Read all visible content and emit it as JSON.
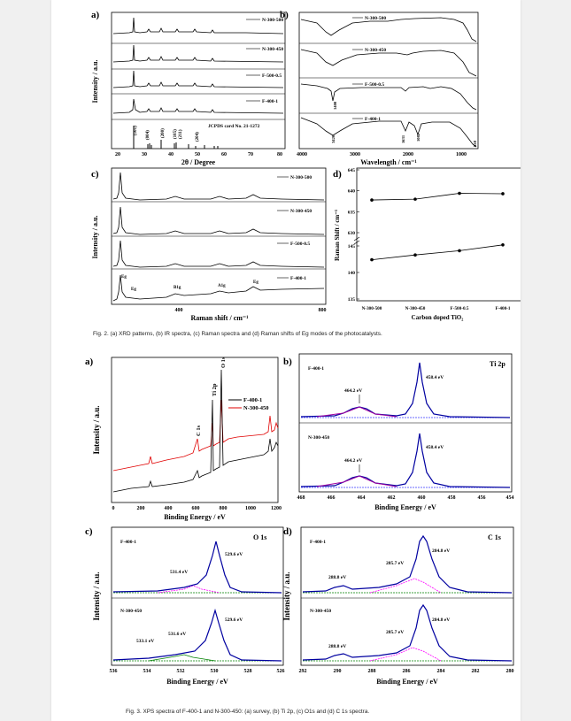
{
  "figure2": {
    "caption": "Fig. 2. (a) XRD patterns, (b) IR spectra, (c) Raman spectra and (d) Raman shifts of Eg modes of the photocatalysts.",
    "a": {
      "label": "a)",
      "xlabel": "2θ / Degree",
      "ylabel": "Intensity / a.u.",
      "xticks": [
        "20",
        "30",
        "40",
        "50",
        "60",
        "70",
        "80"
      ],
      "series": [
        "N-300-500",
        "N-300-450",
        "F-500-0.5",
        "F-400-1"
      ],
      "ref_label": "JCPDS card No. 21-1272",
      "peaks": [
        "(101)",
        "(004)",
        "(200)",
        "(105)",
        "(211)",
        "(204)"
      ]
    },
    "b": {
      "label": "b)",
      "xlabel": "Wavelength / cm⁻¹",
      "xticks": [
        "4000",
        "3000",
        "2000",
        "1000"
      ],
      "series": [
        "N-300-500",
        "N-300-450",
        "F-500-0.5",
        "F-400-1"
      ],
      "bands": [
        "3420",
        "1631",
        "1400",
        "1082",
        "928"
      ]
    },
    "c": {
      "label": "c)",
      "xlabel": "Raman shift / cm⁻¹",
      "ylabel": "Intensity / a.u.",
      "xticks": [
        "400",
        "800"
      ],
      "series": [
        "N-300-500",
        "N-300-450",
        "F-500-0.5",
        "F-400-1"
      ],
      "modes": [
        "Eg",
        "Eg",
        "B1g",
        "A1g",
        "Eg"
      ]
    },
    "d": {
      "label": "d)",
      "xlabel": "Carbon doped TiO₂",
      "ylabel": "Raman Shift / cm⁻¹",
      "categories": [
        "N-300-500",
        "N-300-450",
        "F-500-0.5",
        "F-400-1"
      ],
      "yticks_top": [
        "630",
        "635",
        "640",
        "645"
      ],
      "yticks_bottom": [
        "135",
        "140",
        "145"
      ]
    }
  },
  "figure3": {
    "caption": "Fig. 3. XPS spectra of F-400-1 and N-300-450: (a) survey, (b) Ti 2p, (c) O1s and (d) C 1s spectra.",
    "a": {
      "label": "a)",
      "xlabel": "Binding Energy / eV",
      "ylabel": "Intensity / a.u.",
      "xticks": [
        "0",
        "200",
        "400",
        "600",
        "800",
        "1000",
        "1200"
      ],
      "legend": [
        "F-400-1",
        "N-300-450"
      ],
      "peaks": [
        "C 1s",
        "Ti 2p",
        "O 1s"
      ]
    },
    "b": {
      "label": "b)",
      "title": "Ti 2p",
      "xlabel": "Binding Energy / eV",
      "xticks": [
        "468",
        "466",
        "464",
        "462",
        "460",
        "458",
        "456",
        "454"
      ],
      "panels": [
        {
          "sample": "F-400-1",
          "peak1": "464.2 eV",
          "peak2": "458.4 eV"
        },
        {
          "sample": "N-300-450",
          "peak1": "464.2 eV",
          "peak2": "458.4 eV"
        }
      ]
    },
    "c": {
      "label": "c)",
      "title": "O 1s",
      "xlabel": "Binding Energy / eV",
      "ylabel": "Intensity / a.u.",
      "xticks": [
        "536",
        "534",
        "532",
        "530",
        "528",
        "526"
      ],
      "panels": [
        {
          "sample": "F-400-1",
          "peaks": [
            "531.4 eV",
            "529.6 eV"
          ]
        },
        {
          "sample": "N-300-450",
          "peaks": [
            "533.1 eV",
            "531.6 eV",
            "529.6 eV"
          ]
        }
      ]
    },
    "d": {
      "label": "d)",
      "title": "C 1s",
      "xlabel": "Binding Energy / eV",
      "ylabel": "Intensity / a.u.",
      "xticks": [
        "292",
        "290",
        "288",
        "286",
        "284",
        "282",
        "280"
      ],
      "panels": [
        {
          "sample": "F-400-1",
          "peaks": [
            "288.8 eV",
            "285.7 eV",
            "284.8 eV"
          ]
        },
        {
          "sample": "N-300-450",
          "peaks": [
            "288.8 eV",
            "285.7 eV",
            "284.8 eV"
          ]
        }
      ]
    }
  },
  "chart_data": [
    {
      "type": "line",
      "title": "",
      "xlabel": "Carbon doped TiO₂",
      "ylabel": "Raman Shift / cm⁻¹",
      "categories": [
        "N-300-500",
        "N-300-450",
        "F-500-0.5",
        "F-400-1"
      ],
      "series": [
        {
          "values": [
            637.8,
            638.0,
            639.4,
            639.3
          ]
        },
        {
          "values": [
            142.4,
            143.3,
            144.1,
            145.2
          ]
        }
      ],
      "ylim": [
        135,
        645
      ],
      "axis_break": true,
      "grid": false
    }
  ]
}
